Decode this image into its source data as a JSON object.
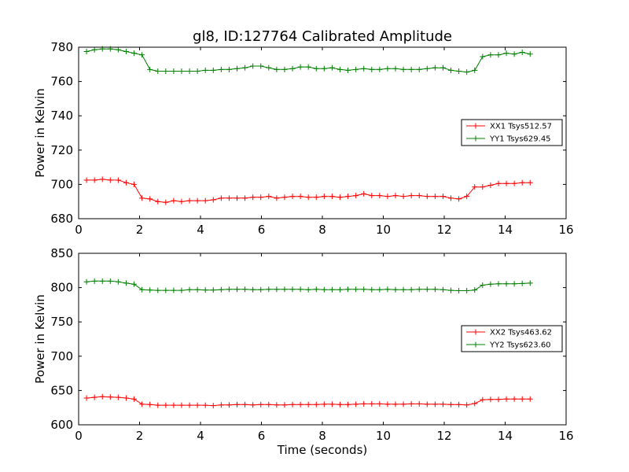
{
  "title": "gl8, ID:127764 Calibrated Amplitude",
  "chart_data": [
    {
      "type": "line",
      "title": "gl8, ID:127764 Calibrated Amplitude",
      "xlabel": "",
      "ylabel": "Power in Kelvin",
      "xlim": [
        0,
        16
      ],
      "ylim": [
        680,
        780
      ],
      "xticks": [
        "0",
        "2",
        "4",
        "6",
        "8",
        "10",
        "12",
        "14",
        "16"
      ],
      "yticks": [
        "680",
        "700",
        "720",
        "740",
        "760",
        "780"
      ],
      "grid": false,
      "legend_position": "center-right",
      "x": [
        0.26,
        0.52,
        0.78,
        1.04,
        1.3,
        1.56,
        1.82,
        2.08,
        2.34,
        2.6,
        2.86,
        3.12,
        3.38,
        3.64,
        3.9,
        4.16,
        4.42,
        4.68,
        4.94,
        5.2,
        5.46,
        5.72,
        5.98,
        6.24,
        6.5,
        6.76,
        7.02,
        7.28,
        7.54,
        7.8,
        8.06,
        8.32,
        8.58,
        8.84,
        9.1,
        9.36,
        9.62,
        9.88,
        10.14,
        10.4,
        10.66,
        10.92,
        11.18,
        11.44,
        11.7,
        11.96,
        12.22,
        12.48,
        12.74,
        13.0,
        13.26,
        13.52,
        13.78,
        14.04,
        14.3,
        14.56,
        14.82
      ],
      "series": [
        {
          "name": "XX1 Tsys512.57",
          "color": "#ff0000",
          "values": [
            702.5,
            702.5,
            703,
            702.5,
            702.5,
            701,
            700,
            692,
            691.5,
            690,
            689.5,
            690.5,
            690,
            690.5,
            690.5,
            690.5,
            691,
            692,
            692,
            692,
            692,
            692.5,
            692.5,
            693,
            692,
            692.5,
            693,
            693,
            692.5,
            692.5,
            693,
            693,
            692.5,
            693,
            693.5,
            694.5,
            693.5,
            693.5,
            693,
            693.5,
            693,
            693.5,
            693.5,
            693,
            693,
            693,
            692,
            691.5,
            693,
            698.5,
            698.5,
            699.5,
            700.5,
            700.5,
            700.5,
            701,
            701
          ]
        },
        {
          "name": "YY1 Tsys629.45",
          "color": "#008000",
          "values": [
            777.5,
            778.5,
            779,
            779,
            778.5,
            777.5,
            776.5,
            775.5,
            767,
            766,
            766,
            766,
            766,
            766,
            766,
            766.5,
            766.5,
            767,
            767,
            767.5,
            768,
            769,
            769,
            768,
            767,
            767,
            767.5,
            768.5,
            768.5,
            767.5,
            767.5,
            768,
            767,
            766.5,
            767,
            767.5,
            767,
            767,
            767.5,
            767.5,
            767,
            767,
            767,
            767.5,
            768,
            768,
            766.5,
            766,
            765.5,
            766.5,
            774.5,
            775.5,
            775.5,
            776.5,
            776,
            777,
            776
          ]
        }
      ]
    },
    {
      "type": "line",
      "title": "",
      "xlabel": "Time (seconds)",
      "ylabel": "Power in Kelvin",
      "xlim": [
        0,
        16
      ],
      "ylim": [
        600,
        850
      ],
      "xticks": [
        "0",
        "2",
        "4",
        "6",
        "8",
        "10",
        "12",
        "14",
        "16"
      ],
      "yticks": [
        "600",
        "650",
        "700",
        "750",
        "800",
        "850"
      ],
      "grid": false,
      "legend_position": "center-right",
      "x": [
        0.26,
        0.52,
        0.78,
        1.04,
        1.3,
        1.56,
        1.82,
        2.08,
        2.34,
        2.6,
        2.86,
        3.12,
        3.38,
        3.64,
        3.9,
        4.16,
        4.42,
        4.68,
        4.94,
        5.2,
        5.46,
        5.72,
        5.98,
        6.24,
        6.5,
        6.76,
        7.02,
        7.28,
        7.54,
        7.8,
        8.06,
        8.32,
        8.58,
        8.84,
        9.1,
        9.36,
        9.62,
        9.88,
        10.14,
        10.4,
        10.66,
        10.92,
        11.18,
        11.44,
        11.7,
        11.96,
        12.22,
        12.48,
        12.74,
        13.0,
        13.26,
        13.52,
        13.78,
        14.04,
        14.3,
        14.56,
        14.82
      ],
      "series": [
        {
          "name": "XX2 Tsys463.62",
          "color": "#ff0000",
          "values": [
            639,
            640,
            641,
            640.5,
            640,
            639,
            637.5,
            630,
            629.5,
            628.5,
            628.5,
            628.5,
            628.5,
            628.5,
            628.5,
            628.5,
            628,
            629,
            629,
            629.5,
            629.5,
            629,
            629.5,
            629.5,
            629,
            629,
            629.5,
            629.5,
            629.5,
            629.5,
            630,
            630,
            629.5,
            629.5,
            630,
            630.5,
            630.5,
            630.5,
            630,
            630,
            630,
            630.5,
            630.5,
            630,
            630,
            630,
            629.5,
            629.5,
            629,
            631,
            636.5,
            637,
            637,
            637.5,
            637.5,
            637.5,
            637.5
          ]
        },
        {
          "name": "YY2 Tsys623.60",
          "color": "#008000",
          "values": [
            808.5,
            809.5,
            809.5,
            809.5,
            808.5,
            806.5,
            805,
            797,
            796.5,
            796,
            796,
            796,
            796,
            797,
            797,
            796.5,
            796.5,
            797,
            797.5,
            797.5,
            797.5,
            797,
            797,
            797.5,
            797.5,
            797.5,
            797.5,
            797.5,
            797,
            797.5,
            797,
            797,
            797,
            797.5,
            797.5,
            797.5,
            797,
            797,
            797.5,
            797,
            797,
            797,
            797.5,
            797.5,
            797.5,
            797,
            796,
            795.5,
            795.5,
            796.5,
            803.5,
            805,
            805.5,
            805.5,
            805.5,
            806,
            806.5
          ]
        }
      ]
    }
  ]
}
